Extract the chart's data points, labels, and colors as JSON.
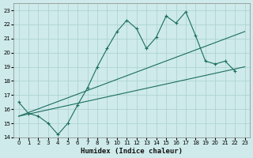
{
  "xlabel": "Humidex (Indice chaleur)",
  "background_color": "#ceeaea",
  "grid_color": "#aacfcf",
  "line_color": "#1a6e5e",
  "xlim": [
    -0.5,
    23.5
  ],
  "ylim": [
    14,
    23.5
  ],
  "yticks": [
    14,
    15,
    16,
    17,
    18,
    19,
    20,
    21,
    22,
    23
  ],
  "xticks": [
    0,
    1,
    2,
    3,
    4,
    5,
    6,
    7,
    8,
    9,
    10,
    11,
    12,
    13,
    14,
    15,
    16,
    17,
    18,
    19,
    20,
    21,
    22,
    23
  ],
  "series1_x": [
    0,
    1,
    2,
    3,
    4,
    5,
    6,
    7,
    8,
    9,
    10,
    11,
    12,
    13,
    14,
    15,
    16,
    17,
    18,
    19,
    20,
    21,
    22
  ],
  "series1_y": [
    16.5,
    15.7,
    15.5,
    15.0,
    14.2,
    15.0,
    16.3,
    17.5,
    19.0,
    20.3,
    21.5,
    22.3,
    21.7,
    20.3,
    21.1,
    22.6,
    22.1,
    22.9,
    21.2,
    19.4,
    19.2,
    19.4,
    18.7
  ],
  "line2_x": [
    0,
    23
  ],
  "line2_y": [
    15.5,
    19.0
  ],
  "line3_x": [
    0,
    23
  ],
  "line3_y": [
    15.5,
    21.5
  ]
}
